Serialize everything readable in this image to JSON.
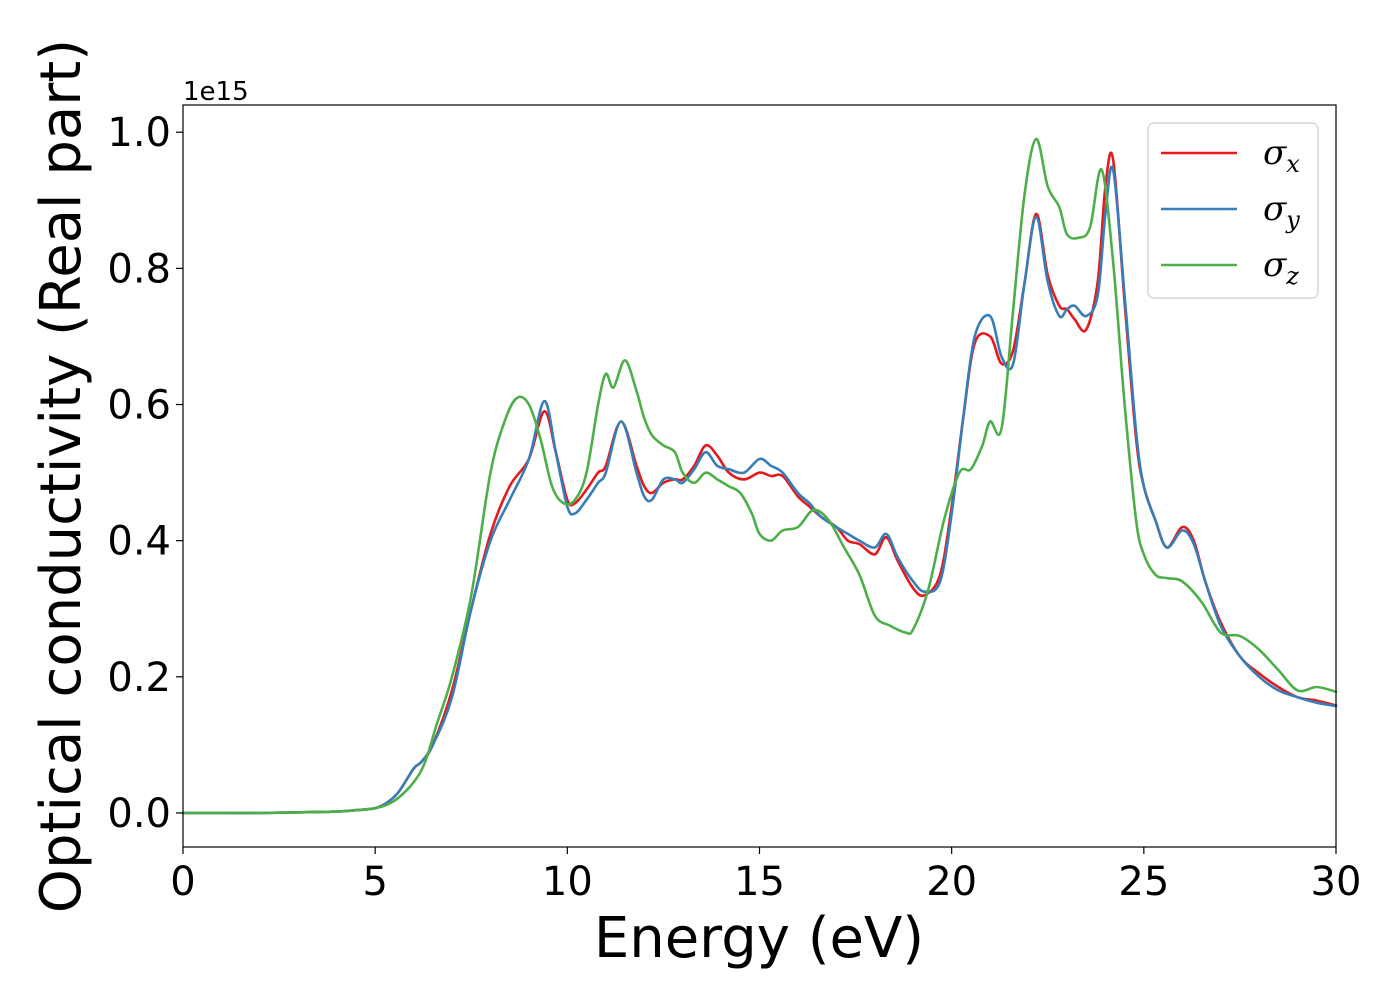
{
  "chart_data": {
    "type": "line",
    "xlabel": "Energy (eV)",
    "ylabel": "Optical conductivity (Real part)",
    "y_offset_label": "1e15",
    "xlim": [
      0,
      30
    ],
    "ylim": [
      -0.05,
      1.04
    ],
    "x_ticks": [
      0,
      5,
      10,
      15,
      20,
      25,
      30
    ],
    "x_tick_labels": [
      "0",
      "5",
      "10",
      "15",
      "20",
      "25",
      "30"
    ],
    "y_ticks": [
      0.0,
      0.2,
      0.4,
      0.6,
      0.8,
      1.0
    ],
    "y_tick_labels": [
      "0.0",
      "0.2",
      "0.4",
      "0.6",
      "0.8",
      "1.0"
    ],
    "grid": false,
    "legend_position": "top-right",
    "series": [
      {
        "name": "σ_x",
        "label_main": "σ",
        "label_sub": "x",
        "color": "#e41a1c",
        "x": [
          0,
          1,
          2,
          3,
          4,
          4.5,
          5,
          5.3,
          5.6,
          6.0,
          6.2,
          6.5,
          7.0,
          7.5,
          8.0,
          8.5,
          9.0,
          9.4,
          9.7,
          10.0,
          10.2,
          10.5,
          10.8,
          11.0,
          11.4,
          11.8,
          12.0,
          12.2,
          12.5,
          12.8,
          13.0,
          13.3,
          13.6,
          13.9,
          14.2,
          14.6,
          15.0,
          15.3,
          15.6,
          16.0,
          16.3,
          16.6,
          17.0,
          17.3,
          17.6,
          18.0,
          18.3,
          18.6,
          19.0,
          19.3,
          19.7,
          20.0,
          20.3,
          20.6,
          21.0,
          21.3,
          21.6,
          21.9,
          22.2,
          22.5,
          22.8,
          23.0,
          23.2,
          23.5,
          23.8,
          24.0,
          24.2,
          24.5,
          24.8,
          25.0,
          25.3,
          25.6,
          26.0,
          26.3,
          26.6,
          27.0,
          27.5,
          28.0,
          28.5,
          29.0,
          29.5,
          30.0
        ],
        "y": [
          0,
          0,
          0,
          0.001,
          0.002,
          0.004,
          0.007,
          0.015,
          0.03,
          0.065,
          0.075,
          0.1,
          0.18,
          0.3,
          0.41,
          0.48,
          0.52,
          0.59,
          0.53,
          0.46,
          0.455,
          0.475,
          0.5,
          0.51,
          0.575,
          0.51,
          0.48,
          0.47,
          0.485,
          0.49,
          0.49,
          0.51,
          0.54,
          0.525,
          0.5,
          0.49,
          0.5,
          0.495,
          0.495,
          0.465,
          0.45,
          0.435,
          0.42,
          0.4,
          0.395,
          0.38,
          0.405,
          0.37,
          0.33,
          0.32,
          0.35,
          0.45,
          0.58,
          0.69,
          0.7,
          0.66,
          0.68,
          0.78,
          0.88,
          0.79,
          0.745,
          0.74,
          0.725,
          0.71,
          0.78,
          0.92,
          0.96,
          0.75,
          0.55,
          0.48,
          0.43,
          0.39,
          0.42,
          0.4,
          0.34,
          0.28,
          0.23,
          0.205,
          0.185,
          0.17,
          0.165,
          0.158
        ]
      },
      {
        "name": "σ_y",
        "label_main": "σ",
        "label_sub": "y",
        "color": "#377eb8",
        "x": [
          0,
          1,
          2,
          3,
          4,
          4.5,
          5,
          5.3,
          5.6,
          6.0,
          6.2,
          6.5,
          7.0,
          7.5,
          8.0,
          8.5,
          9.0,
          9.4,
          9.7,
          10.0,
          10.2,
          10.5,
          10.8,
          11.0,
          11.4,
          11.8,
          12.0,
          12.2,
          12.5,
          12.8,
          13.0,
          13.3,
          13.6,
          13.9,
          14.2,
          14.6,
          15.0,
          15.3,
          15.6,
          16.0,
          16.3,
          16.6,
          17.0,
          17.3,
          17.6,
          18.0,
          18.3,
          18.6,
          19.0,
          19.3,
          19.7,
          20.0,
          20.3,
          20.6,
          21.0,
          21.3,
          21.6,
          21.9,
          22.2,
          22.5,
          22.8,
          23.0,
          23.2,
          23.5,
          23.8,
          24.0,
          24.2,
          24.5,
          24.8,
          25.0,
          25.3,
          25.6,
          26.0,
          26.3,
          26.6,
          27.0,
          27.5,
          28.0,
          28.5,
          29.0,
          29.5,
          30.0
        ],
        "y": [
          0,
          0,
          0,
          0.001,
          0.002,
          0.004,
          0.007,
          0.015,
          0.03,
          0.065,
          0.075,
          0.1,
          0.17,
          0.3,
          0.4,
          0.46,
          0.52,
          0.605,
          0.53,
          0.45,
          0.44,
          0.46,
          0.485,
          0.5,
          0.575,
          0.5,
          0.465,
          0.46,
          0.49,
          0.49,
          0.485,
          0.505,
          0.53,
          0.51,
          0.505,
          0.5,
          0.52,
          0.51,
          0.5,
          0.47,
          0.455,
          0.435,
          0.42,
          0.41,
          0.4,
          0.39,
          0.41,
          0.375,
          0.34,
          0.325,
          0.34,
          0.44,
          0.58,
          0.7,
          0.73,
          0.67,
          0.66,
          0.78,
          0.875,
          0.78,
          0.73,
          0.74,
          0.745,
          0.73,
          0.76,
          0.88,
          0.945,
          0.76,
          0.56,
          0.48,
          0.43,
          0.39,
          0.415,
          0.395,
          0.34,
          0.275,
          0.23,
          0.2,
          0.18,
          0.17,
          0.162,
          0.157
        ]
      },
      {
        "name": "σ_z",
        "label_main": "σ",
        "label_sub": "z",
        "color": "#4daf4a",
        "x": [
          0,
          1,
          2,
          3,
          4,
          4.5,
          5,
          5.3,
          5.6,
          6.0,
          6.3,
          6.6,
          7.0,
          7.5,
          8.0,
          8.4,
          8.7,
          9.0,
          9.3,
          9.6,
          9.9,
          10.2,
          10.5,
          10.8,
          11.0,
          11.2,
          11.5,
          11.8,
          12.0,
          12.2,
          12.5,
          12.8,
          13.0,
          13.3,
          13.6,
          13.9,
          14.2,
          14.5,
          14.8,
          15.0,
          15.3,
          15.6,
          16.0,
          16.4,
          16.8,
          17.2,
          17.6,
          18.0,
          18.4,
          18.8,
          19.0,
          19.4,
          19.8,
          20.2,
          20.5,
          20.8,
          21.0,
          21.3,
          21.6,
          21.9,
          22.2,
          22.5,
          22.8,
          23.0,
          23.3,
          23.6,
          23.9,
          24.2,
          24.5,
          24.8,
          25.0,
          25.3,
          25.6,
          26.0,
          26.5,
          27.0,
          27.5,
          28.0,
          28.5,
          29.0,
          29.5,
          30.0
        ],
        "y": [
          0,
          0,
          0,
          0.001,
          0.002,
          0.004,
          0.007,
          0.012,
          0.022,
          0.045,
          0.075,
          0.13,
          0.2,
          0.32,
          0.5,
          0.58,
          0.61,
          0.6,
          0.55,
          0.48,
          0.455,
          0.46,
          0.5,
          0.6,
          0.645,
          0.625,
          0.665,
          0.62,
          0.58,
          0.555,
          0.54,
          0.53,
          0.5,
          0.485,
          0.5,
          0.49,
          0.48,
          0.47,
          0.44,
          0.41,
          0.4,
          0.415,
          0.42,
          0.445,
          0.43,
          0.39,
          0.35,
          0.29,
          0.275,
          0.265,
          0.27,
          0.33,
          0.43,
          0.5,
          0.505,
          0.54,
          0.575,
          0.565,
          0.74,
          0.91,
          0.99,
          0.92,
          0.89,
          0.85,
          0.845,
          0.86,
          0.945,
          0.81,
          0.6,
          0.43,
          0.38,
          0.35,
          0.345,
          0.34,
          0.31,
          0.265,
          0.26,
          0.24,
          0.21,
          0.18,
          0.185,
          0.178
        ]
      }
    ]
  }
}
